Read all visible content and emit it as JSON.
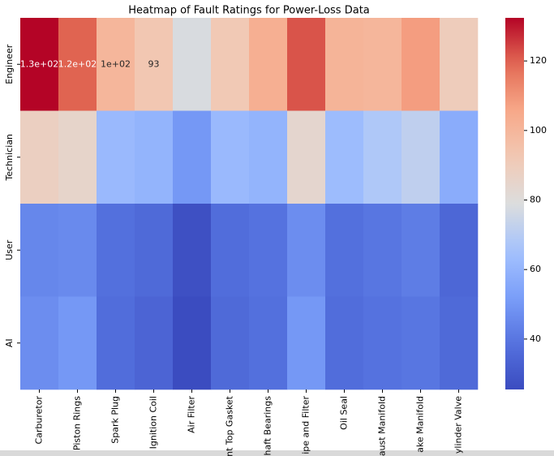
{
  "chart_data": {
    "type": "heatmap",
    "title": "Heatmap of Fault Ratings for Power-Loss Data",
    "rows": [
      "Engineer",
      "Technician",
      "User",
      "AI"
    ],
    "columns": [
      "Carburetor",
      "Piston Rings",
      "Spark Plug",
      "Ignition Coil",
      "Air Filter",
      "nt Top Gasket",
      "haft Bearings",
      "ipe and Filter",
      "Oil Seal",
      "aust Manifold",
      "ake Manifold",
      "ylinder Valve"
    ],
    "values": [
      [
        132.4,
        120,
        100,
        93,
        78,
        92,
        103,
        122,
        101,
        100,
        108,
        90
      ],
      [
        88,
        85,
        62,
        60,
        50,
        62,
        60,
        84,
        63,
        68,
        72,
        57
      ],
      [
        45,
        46,
        38,
        36,
        27,
        37,
        39,
        47,
        38,
        40,
        42,
        35
      ],
      [
        47,
        50,
        37,
        34,
        25.5,
        36,
        38,
        50,
        37,
        39,
        40,
        36
      ]
    ],
    "value_labels": [
      [
        "1.3e+02",
        "1.2e+02",
        "1e+02",
        "93",
        null,
        null,
        null,
        null,
        null,
        null,
        null,
        null
      ],
      [
        null,
        null,
        null,
        null,
        null,
        null,
        null,
        null,
        null,
        null,
        null,
        null
      ],
      [
        null,
        null,
        null,
        null,
        null,
        null,
        null,
        null,
        null,
        null,
        null,
        null
      ],
      [
        null,
        null,
        null,
        null,
        null,
        null,
        null,
        null,
        null,
        null,
        null,
        null
      ]
    ],
    "colormap": "coolwarm",
    "clim": [
      25.5,
      132.4
    ],
    "cticks": [
      40,
      60,
      80,
      100,
      120
    ]
  }
}
